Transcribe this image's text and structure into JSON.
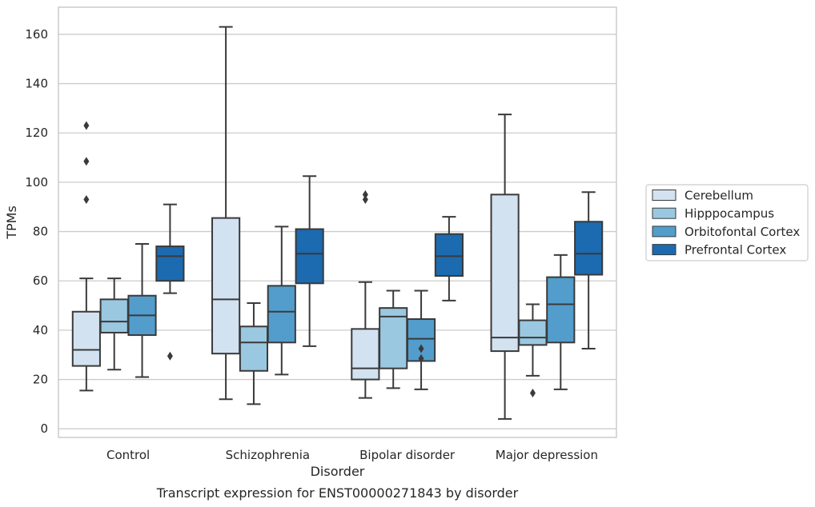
{
  "caption": "Transcript expression for ENST00000271843 by disorder",
  "chart_data": {
    "type": "box",
    "title": "",
    "xlabel": "Disorder",
    "ylabel": "TPMs",
    "ylim": [
      -3.5,
      171
    ],
    "yticks": [
      0,
      20,
      40,
      60,
      80,
      100,
      120,
      140,
      160
    ],
    "grid": true,
    "legend_position": "right",
    "categories": [
      "Control",
      "Schizophrenia",
      "Bipolar disorder",
      "Major depression"
    ],
    "series": [
      {
        "name": "Cerebellum",
        "color": "#d2e2f1",
        "boxes": [
          {
            "whisker_low": 15.5,
            "q1": 25.5,
            "median": 32,
            "q3": 47.5,
            "whisker_high": 61,
            "outliers": [
              93,
              108.5,
              123
            ]
          },
          {
            "whisker_low": 12,
            "q1": 30.5,
            "median": 52.5,
            "q3": 85.5,
            "whisker_high": 163,
            "outliers": []
          },
          {
            "whisker_low": 12.5,
            "q1": 20,
            "median": 24.5,
            "q3": 40.5,
            "whisker_high": 59.5,
            "outliers": [
              93,
              95
            ]
          },
          {
            "whisker_low": 4,
            "q1": 31.5,
            "median": 37,
            "q3": 95,
            "whisker_high": 127.5,
            "outliers": []
          }
        ]
      },
      {
        "name": "Hipppocampus",
        "color": "#9ac8e0",
        "boxes": [
          {
            "whisker_low": 24,
            "q1": 39,
            "median": 43.5,
            "q3": 52.5,
            "whisker_high": 61,
            "outliers": []
          },
          {
            "whisker_low": 10,
            "q1": 23.5,
            "median": 35,
            "q3": 41.5,
            "whisker_high": 51,
            "outliers": []
          },
          {
            "whisker_low": 16.5,
            "q1": 24.5,
            "median": 45.5,
            "q3": 49,
            "whisker_high": 56,
            "outliers": []
          },
          {
            "whisker_low": 21.5,
            "q1": 34,
            "median": 37,
            "q3": 44,
            "whisker_high": 50.5,
            "outliers": [
              14.5
            ]
          }
        ]
      },
      {
        "name": "Orbitofontal Cortex",
        "color": "#529dcc",
        "boxes": [
          {
            "whisker_low": 21,
            "q1": 38,
            "median": 46,
            "q3": 54,
            "whisker_high": 75,
            "outliers": []
          },
          {
            "whisker_low": 22,
            "q1": 35,
            "median": 47.5,
            "q3": 58,
            "whisker_high": 82,
            "outliers": []
          },
          {
            "whisker_low": 16,
            "q1": 27.5,
            "median": 36.5,
            "q3": 44.5,
            "whisker_high": 56,
            "outliers": [
              28.5,
              32.5
            ]
          },
          {
            "whisker_low": 16,
            "q1": 35,
            "median": 50.5,
            "q3": 61.5,
            "whisker_high": 70.5,
            "outliers": []
          }
        ]
      },
      {
        "name": "Prefrontal Cortex",
        "color": "#1c6aaf",
        "boxes": [
          {
            "whisker_low": 55,
            "q1": 60,
            "median": 70,
            "q3": 74,
            "whisker_high": 91,
            "outliers": [
              29.5
            ]
          },
          {
            "whisker_low": 33.5,
            "q1": 59,
            "median": 71,
            "q3": 81,
            "whisker_high": 102.5,
            "outliers": []
          },
          {
            "whisker_low": 52,
            "q1": 62,
            "median": 70,
            "q3": 79,
            "whisker_high": 86,
            "outliers": []
          },
          {
            "whisker_low": 32.5,
            "q1": 62.5,
            "median": 71,
            "q3": 84,
            "whisker_high": 96,
            "outliers": []
          }
        ]
      }
    ]
  }
}
